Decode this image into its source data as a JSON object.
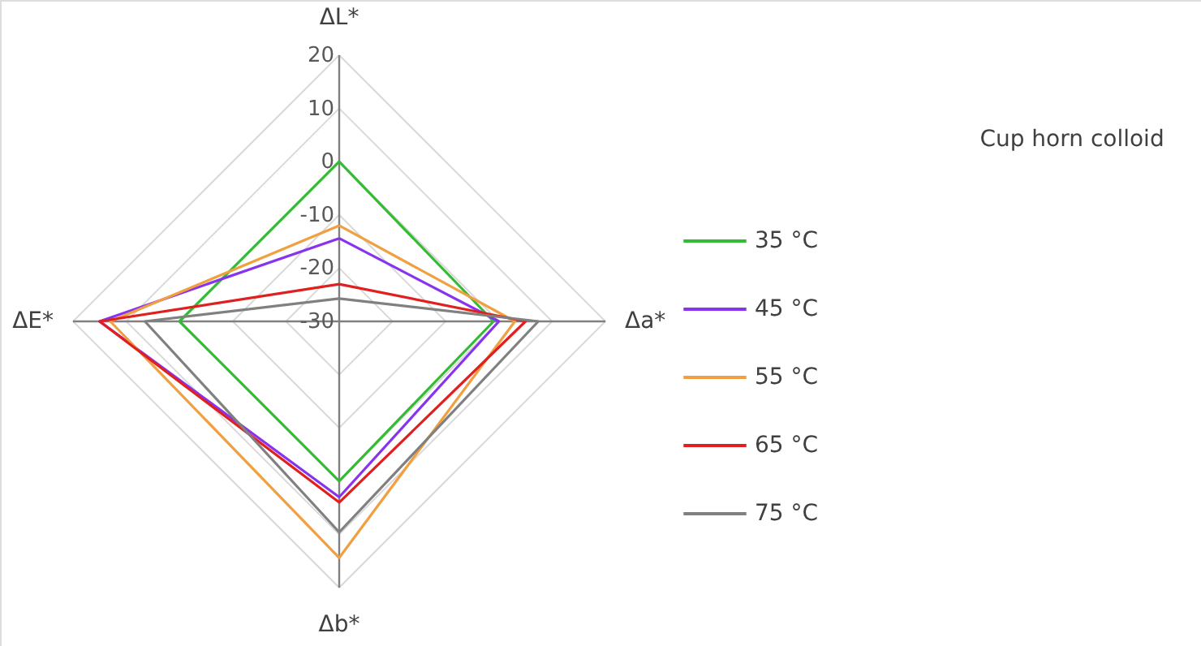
{
  "chart_data": [
    {
      "type": "radar",
      "categories": [
        "ΔL*",
        "Δa*",
        "Δb*",
        "ΔE*"
      ],
      "ylim": [
        -30,
        20
      ],
      "yticks": [
        -30,
        -20,
        -10,
        0,
        10,
        20
      ],
      "grid": true,
      "legend": "right",
      "marker": "none",
      "line_style": "solid",
      "series": [
        {
          "name": "35 °C",
          "color": "#33bb33",
          "values": [
            0,
            -1,
            0,
            0
          ]
        },
        {
          "name": "45 °C",
          "color": "#8833ee",
          "values": [
            -14.4,
            0,
            3,
            15
          ]
        },
        {
          "name": "55 °C",
          "color": "#f0a040",
          "values": [
            -12,
            3,
            14.4,
            13
          ]
        },
        {
          "name": "65 °C",
          "color": "#e02020",
          "values": [
            -23,
            5,
            4,
            15
          ]
        },
        {
          "name": "75 °C",
          "color": "#808080",
          "values": [
            -25.7,
            7.4,
            9.6,
            6.5
          ]
        }
      ]
    },
    {
      "type": "other",
      "title": "Cup horn colloid"
    }
  ]
}
